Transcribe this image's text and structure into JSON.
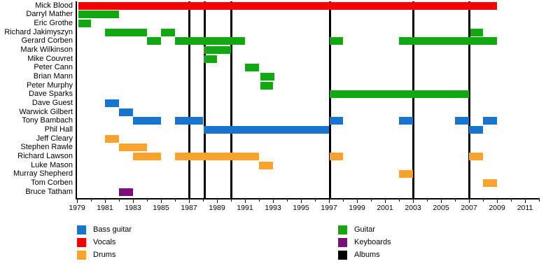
{
  "chart_data": {
    "type": "timeline",
    "title": "",
    "description": "Band member tenure timeline with album release markers",
    "x_axis": {
      "min_year": 1979,
      "max_year": 2012,
      "labeled_years": [
        1979,
        1981,
        1983,
        1985,
        1987,
        1989,
        1991,
        1993,
        1995,
        1997,
        1999,
        2001,
        2003,
        2005,
        2007,
        2009,
        2011
      ],
      "grid": false
    },
    "roles_colors": {
      "Bass guitar": "#1874CD",
      "Vocals": "#F40000",
      "Drums": "#FAA22E",
      "Guitar": "#12A812",
      "Keyboards": "#7C0E7C",
      "Albums": "#000000"
    },
    "members": [
      {
        "name": "Mick Blood",
        "role": "Vocals",
        "stints": [
          [
            1979.1,
            2009
          ]
        ]
      },
      {
        "name": "Darryl Mather",
        "role": "Guitar",
        "stints": [
          [
            1979.1,
            1982
          ]
        ]
      },
      {
        "name": "Eric Grothe",
        "role": "Guitar",
        "stints": [
          [
            1979.1,
            1980
          ]
        ]
      },
      {
        "name": "Richard Jakimyszyn",
        "role": "Guitar",
        "stints": [
          [
            1981,
            1984
          ],
          [
            1985,
            1986
          ],
          [
            2007.1,
            2008
          ]
        ]
      },
      {
        "name": "Gerard Corben",
        "role": "Guitar",
        "stints": [
          [
            1984,
            1985
          ],
          [
            1986,
            1991
          ],
          [
            1997.05,
            1998
          ],
          [
            2002,
            2009
          ]
        ]
      },
      {
        "name": "Mark Wilkinson",
        "role": "Guitar",
        "stints": [
          [
            1988.05,
            1990
          ]
        ]
      },
      {
        "name": "Mike Couvret",
        "role": "Guitar",
        "stints": [
          [
            1988.05,
            1989
          ]
        ]
      },
      {
        "name": "Peter Cann",
        "role": "Guitar",
        "stints": [
          [
            1991,
            1992
          ]
        ]
      },
      {
        "name": "Brian Mann",
        "role": "Guitar",
        "stints": [
          [
            1992.1,
            1993.1
          ]
        ]
      },
      {
        "name": "Peter Murphy",
        "role": "Guitar",
        "stints": [
          [
            1992.1,
            1993
          ]
        ]
      },
      {
        "name": "Dave Sparks",
        "role": "Guitar",
        "stints": [
          [
            1997.05,
            2007
          ]
        ]
      },
      {
        "name": "Dave Guest",
        "role": "Bass guitar",
        "stints": [
          [
            1981,
            1982
          ]
        ]
      },
      {
        "name": "Warwick Gilbert",
        "role": "Bass guitar",
        "stints": [
          [
            1982,
            1983
          ]
        ]
      },
      {
        "name": "Tony Bambach",
        "role": "Bass guitar",
        "stints": [
          [
            1983,
            1985
          ],
          [
            1986,
            1988
          ],
          [
            1997.05,
            1998
          ],
          [
            2002,
            2003
          ],
          [
            2006,
            2007
          ],
          [
            2008,
            2009
          ]
        ]
      },
      {
        "name": "Phil Hall",
        "role": "Bass guitar",
        "stints": [
          [
            1988.05,
            1997
          ],
          [
            2007,
            2008
          ]
        ]
      },
      {
        "name": "Jeff Cleary",
        "role": "Drums",
        "stints": [
          [
            1981,
            1982
          ]
        ]
      },
      {
        "name": "Stephen Rawle",
        "role": "Drums",
        "stints": [
          [
            1982,
            1984
          ]
        ]
      },
      {
        "name": "Richard Lawson",
        "role": "Drums",
        "stints": [
          [
            1983,
            1985
          ],
          [
            1986,
            1992
          ],
          [
            1997.05,
            1998
          ],
          [
            2007,
            2008
          ]
        ]
      },
      {
        "name": "Luke Mason",
        "role": "Drums",
        "stints": [
          [
            1992,
            1993
          ]
        ]
      },
      {
        "name": "Murray Shepherd",
        "role": "Drums",
        "stints": [
          [
            2002,
            2003
          ]
        ]
      },
      {
        "name": "Tom Corben",
        "role": "Drums",
        "stints": [
          [
            2008,
            2009
          ]
        ]
      },
      {
        "name": "Bruce Tatham",
        "role": "Keyboards",
        "stints": [
          [
            1982,
            1983
          ]
        ]
      }
    ],
    "album_years": [
      1987,
      1988.1,
      1990,
      1997.05,
      2003,
      2007
    ],
    "legend": {
      "columns": [
        [
          "Bass guitar",
          "Vocals",
          "Drums"
        ],
        [
          "Guitar",
          "Keyboards",
          "Albums"
        ]
      ]
    }
  }
}
